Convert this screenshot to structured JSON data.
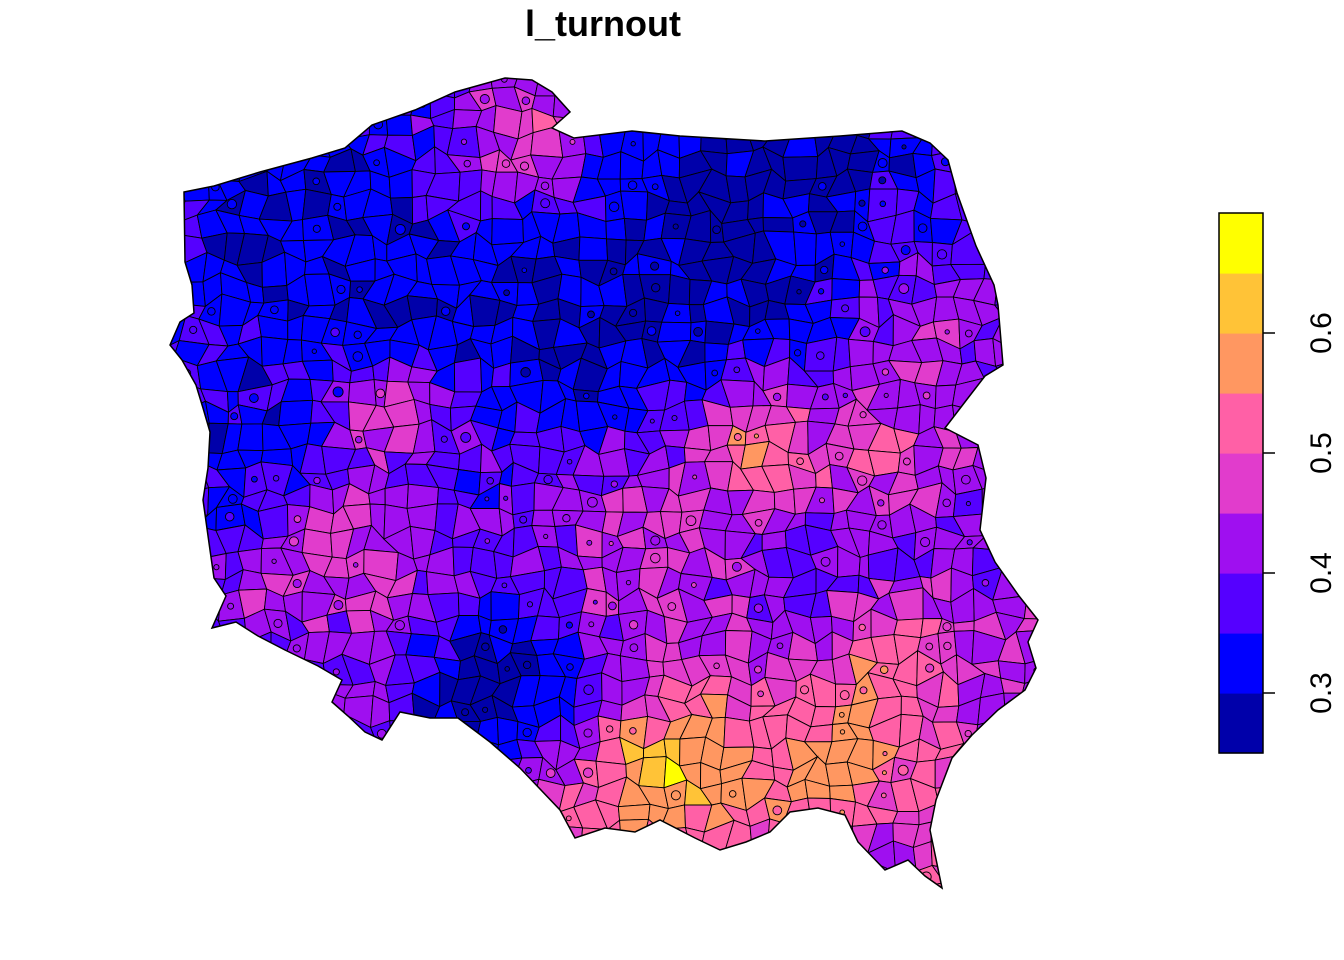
{
  "title": "l_turnout",
  "legend": {
    "placement": "right",
    "breaks": [
      0.25,
      0.3,
      0.35,
      0.4,
      0.45,
      0.5,
      0.55,
      0.6,
      0.65,
      0.7
    ],
    "colors": [
      "#0000AA",
      "#0000FF",
      "#5500FF",
      "#9F0FF0",
      "#E13CCC",
      "#FF60A6",
      "#FF9761",
      "#FFC337",
      "#FFFF00"
    ],
    "tick_values": [
      0.3,
      0.4,
      0.5,
      0.6
    ],
    "tick_labels": [
      "0.3",
      "0.4",
      "0.5",
      "0.6"
    ]
  },
  "map": {
    "region": "Poland",
    "units": "municipalities (gminy)",
    "variable": "l_turnout",
    "outline_color": "#000000"
  }
}
